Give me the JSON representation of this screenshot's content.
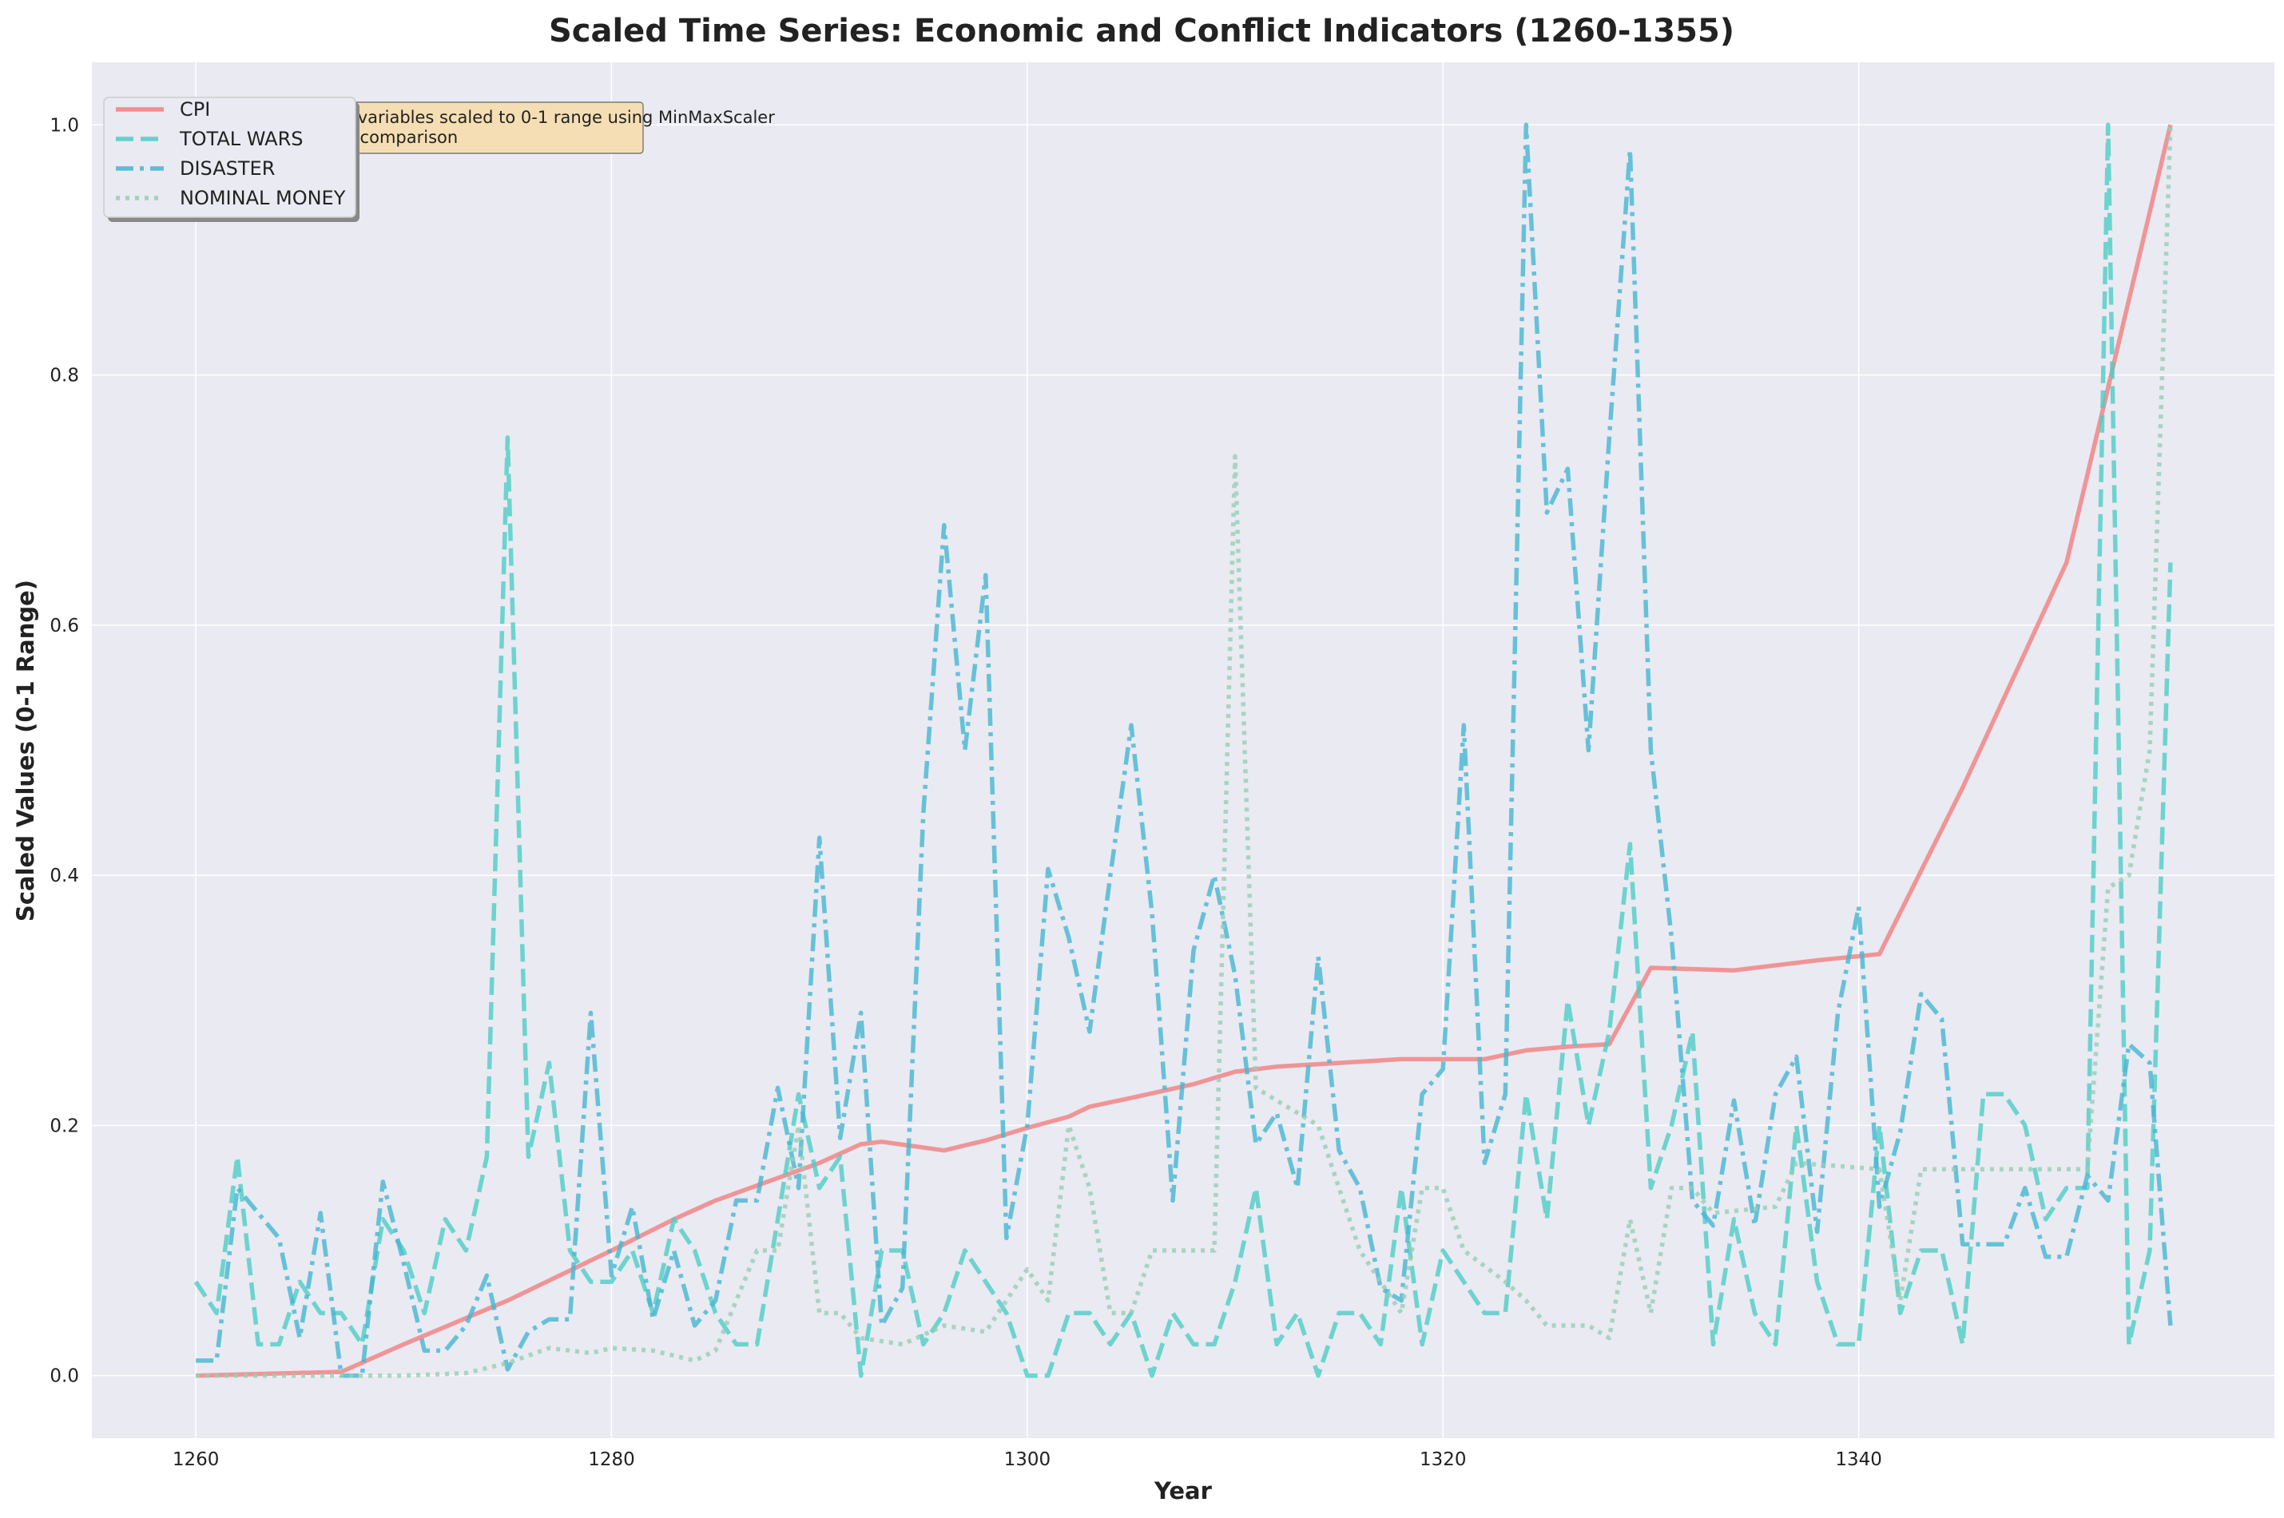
{
  "chart_data": {
    "type": "line",
    "title": "Scaled Time Series: Economic and Conflict Indicators (1260-1355)",
    "xlabel": "Year",
    "ylabel": "Scaled Values (0-1 Range)",
    "xlim": [
      1255,
      1360
    ],
    "ylim": [
      -0.05,
      1.05
    ],
    "xticks": [
      1260,
      1280,
      1300,
      1320,
      1340
    ],
    "yticks": [
      0.0,
      0.2,
      0.4,
      0.6,
      0.8,
      1.0
    ],
    "grid": true,
    "legend_position": "top-left",
    "annotation": "All variables scaled to 0-1 range using MinMaxScaler for comparison",
    "series": [
      {
        "name": "CPI",
        "color": "#f08080",
        "style": "solid",
        "points": [
          [
            1260,
            0.0
          ],
          [
            1267,
            0.003
          ],
          [
            1270,
            0.025
          ],
          [
            1275,
            0.06
          ],
          [
            1280,
            0.1
          ],
          [
            1283,
            0.125
          ],
          [
            1285,
            0.14
          ],
          [
            1290,
            0.17
          ],
          [
            1292,
            0.185
          ],
          [
            1293,
            0.187
          ],
          [
            1296,
            0.18
          ],
          [
            1298,
            0.188
          ],
          [
            1300,
            0.198
          ],
          [
            1302,
            0.207
          ],
          [
            1303,
            0.215
          ],
          [
            1305,
            0.222
          ],
          [
            1308,
            0.233
          ],
          [
            1310,
            0.243
          ],
          [
            1312,
            0.247
          ],
          [
            1315,
            0.25
          ],
          [
            1318,
            0.253
          ],
          [
            1320,
            0.253
          ],
          [
            1322,
            0.253
          ],
          [
            1324,
            0.26
          ],
          [
            1326,
            0.263
          ],
          [
            1328,
            0.265
          ],
          [
            1330,
            0.326
          ],
          [
            1334,
            0.324
          ],
          [
            1338,
            0.332
          ],
          [
            1341,
            0.337
          ],
          [
            1345,
            0.47
          ],
          [
            1350,
            0.65
          ],
          [
            1355,
            1.0
          ]
        ]
      },
      {
        "name": "TOTAL WARS",
        "color": "#4ecdc4",
        "style": "dashed",
        "points": [
          [
            1260,
            0.075
          ],
          [
            1261,
            0.05
          ],
          [
            1262,
            0.175
          ],
          [
            1263,
            0.025
          ],
          [
            1264,
            0.025
          ],
          [
            1265,
            0.075
          ],
          [
            1266,
            0.05
          ],
          [
            1267,
            0.05
          ],
          [
            1268,
            0.025
          ],
          [
            1269,
            0.125
          ],
          [
            1270,
            0.1
          ],
          [
            1271,
            0.05
          ],
          [
            1272,
            0.125
          ],
          [
            1273,
            0.1
          ],
          [
            1274,
            0.175
          ],
          [
            1275,
            0.75
          ],
          [
            1276,
            0.175
          ],
          [
            1277,
            0.25
          ],
          [
            1278,
            0.1
          ],
          [
            1279,
            0.075
          ],
          [
            1280,
            0.075
          ],
          [
            1281,
            0.1
          ],
          [
            1282,
            0.05
          ],
          [
            1283,
            0.125
          ],
          [
            1284,
            0.1
          ],
          [
            1285,
            0.05
          ],
          [
            1286,
            0.025
          ],
          [
            1287,
            0.025
          ],
          [
            1288,
            0.125
          ],
          [
            1289,
            0.225
          ],
          [
            1290,
            0.15
          ],
          [
            1291,
            0.175
          ],
          [
            1292,
            0.0
          ],
          [
            1293,
            0.1
          ],
          [
            1294,
            0.1
          ],
          [
            1295,
            0.025
          ],
          [
            1296,
            0.05
          ],
          [
            1297,
            0.1
          ],
          [
            1298,
            0.075
          ],
          [
            1299,
            0.05
          ],
          [
            1300,
            0.0
          ],
          [
            1301,
            0.0
          ],
          [
            1302,
            0.05
          ],
          [
            1303,
            0.05
          ],
          [
            1304,
            0.025
          ],
          [
            1305,
            0.05
          ],
          [
            1306,
            0.0
          ],
          [
            1307,
            0.05
          ],
          [
            1308,
            0.025
          ],
          [
            1309,
            0.025
          ],
          [
            1310,
            0.075
          ],
          [
            1311,
            0.15
          ],
          [
            1312,
            0.025
          ],
          [
            1313,
            0.05
          ],
          [
            1314,
            0.0
          ],
          [
            1315,
            0.05
          ],
          [
            1316,
            0.05
          ],
          [
            1317,
            0.025
          ],
          [
            1318,
            0.15
          ],
          [
            1319,
            0.025
          ],
          [
            1320,
            0.1
          ],
          [
            1321,
            0.075
          ],
          [
            1322,
            0.05
          ],
          [
            1323,
            0.05
          ],
          [
            1324,
            0.225
          ],
          [
            1325,
            0.125
          ],
          [
            1326,
            0.3
          ],
          [
            1327,
            0.2
          ],
          [
            1328,
            0.275
          ],
          [
            1329,
            0.425
          ],
          [
            1330,
            0.15
          ],
          [
            1331,
            0.2
          ],
          [
            1332,
            0.275
          ],
          [
            1333,
            0.025
          ],
          [
            1334,
            0.125
          ],
          [
            1335,
            0.05
          ],
          [
            1336,
            0.025
          ],
          [
            1337,
            0.2
          ],
          [
            1338,
            0.075
          ],
          [
            1339,
            0.025
          ],
          [
            1340,
            0.025
          ],
          [
            1341,
            0.2
          ],
          [
            1342,
            0.05
          ],
          [
            1343,
            0.1
          ],
          [
            1344,
            0.1
          ],
          [
            1345,
            0.025
          ],
          [
            1346,
            0.225
          ],
          [
            1347,
            0.225
          ],
          [
            1348,
            0.2
          ],
          [
            1349,
            0.125
          ],
          [
            1350,
            0.15
          ],
          [
            1351,
            0.15
          ],
          [
            1352,
            1.0
          ],
          [
            1353,
            0.025
          ],
          [
            1354,
            0.1
          ],
          [
            1355,
            0.65
          ]
        ]
      },
      {
        "name": "DISASTER",
        "color": "#45b7d1",
        "style": "dashdot",
        "points": [
          [
            1260,
            0.012
          ],
          [
            1261,
            0.012
          ],
          [
            1262,
            0.15
          ],
          [
            1263,
            0.13
          ],
          [
            1264,
            0.11
          ],
          [
            1265,
            0.03
          ],
          [
            1266,
            0.13
          ],
          [
            1267,
            0.0
          ],
          [
            1268,
            0.0
          ],
          [
            1269,
            0.155
          ],
          [
            1270,
            0.09
          ],
          [
            1271,
            0.02
          ],
          [
            1272,
            0.02
          ],
          [
            1273,
            0.04
          ],
          [
            1274,
            0.08
          ],
          [
            1275,
            0.005
          ],
          [
            1276,
            0.035
          ],
          [
            1277,
            0.045
          ],
          [
            1278,
            0.045
          ],
          [
            1279,
            0.29
          ],
          [
            1280,
            0.08
          ],
          [
            1281,
            0.135
          ],
          [
            1282,
            0.045
          ],
          [
            1283,
            0.1
          ],
          [
            1284,
            0.04
          ],
          [
            1285,
            0.06
          ],
          [
            1286,
            0.14
          ],
          [
            1287,
            0.14
          ],
          [
            1288,
            0.23
          ],
          [
            1289,
            0.15
          ],
          [
            1290,
            0.43
          ],
          [
            1291,
            0.19
          ],
          [
            1292,
            0.29
          ],
          [
            1293,
            0.04
          ],
          [
            1294,
            0.07
          ],
          [
            1295,
            0.45
          ],
          [
            1296,
            0.68
          ],
          [
            1297,
            0.5
          ],
          [
            1298,
            0.64
          ],
          [
            1299,
            0.11
          ],
          [
            1300,
            0.2
          ],
          [
            1301,
            0.405
          ],
          [
            1302,
            0.35
          ],
          [
            1303,
            0.275
          ],
          [
            1304,
            0.4
          ],
          [
            1305,
            0.52
          ],
          [
            1306,
            0.37
          ],
          [
            1307,
            0.14
          ],
          [
            1308,
            0.34
          ],
          [
            1309,
            0.4
          ],
          [
            1310,
            0.32
          ],
          [
            1311,
            0.185
          ],
          [
            1312,
            0.21
          ],
          [
            1313,
            0.15
          ],
          [
            1314,
            0.335
          ],
          [
            1315,
            0.18
          ],
          [
            1316,
            0.15
          ],
          [
            1317,
            0.07
          ],
          [
            1318,
            0.06
          ],
          [
            1319,
            0.225
          ],
          [
            1320,
            0.245
          ],
          [
            1321,
            0.52
          ],
          [
            1322,
            0.17
          ],
          [
            1323,
            0.225
          ],
          [
            1324,
            1.0
          ],
          [
            1325,
            0.69
          ],
          [
            1326,
            0.725
          ],
          [
            1327,
            0.5
          ],
          [
            1328,
            0.75
          ],
          [
            1329,
            0.98
          ],
          [
            1330,
            0.5
          ],
          [
            1331,
            0.35
          ],
          [
            1332,
            0.14
          ],
          [
            1333,
            0.12
          ],
          [
            1334,
            0.22
          ],
          [
            1335,
            0.12
          ],
          [
            1336,
            0.225
          ],
          [
            1337,
            0.255
          ],
          [
            1338,
            0.115
          ],
          [
            1339,
            0.29
          ],
          [
            1340,
            0.375
          ],
          [
            1341,
            0.135
          ],
          [
            1342,
            0.195
          ],
          [
            1343,
            0.305
          ],
          [
            1344,
            0.285
          ],
          [
            1345,
            0.105
          ],
          [
            1346,
            0.105
          ],
          [
            1347,
            0.105
          ],
          [
            1348,
            0.15
          ],
          [
            1349,
            0.095
          ],
          [
            1350,
            0.095
          ],
          [
            1351,
            0.16
          ],
          [
            1352,
            0.14
          ],
          [
            1353,
            0.265
          ],
          [
            1354,
            0.25
          ],
          [
            1355,
            0.04
          ]
        ]
      },
      {
        "name": "NOMINAL MONEY",
        "color": "#96ceb4",
        "style": "dotted",
        "points": [
          [
            1260,
            0.0
          ],
          [
            1267,
            0.0
          ],
          [
            1270,
            0.0
          ],
          [
            1273,
            0.002
          ],
          [
            1275,
            0.01
          ],
          [
            1277,
            0.022
          ],
          [
            1279,
            0.018
          ],
          [
            1280,
            0.022
          ],
          [
            1282,
            0.02
          ],
          [
            1284,
            0.012
          ],
          [
            1285,
            0.02
          ],
          [
            1287,
            0.1
          ],
          [
            1288,
            0.1
          ],
          [
            1289,
            0.2
          ],
          [
            1290,
            0.05
          ],
          [
            1291,
            0.05
          ],
          [
            1292,
            0.03
          ],
          [
            1294,
            0.025
          ],
          [
            1296,
            0.04
          ],
          [
            1298,
            0.035
          ],
          [
            1300,
            0.085
          ],
          [
            1301,
            0.06
          ],
          [
            1302,
            0.2
          ],
          [
            1303,
            0.15
          ],
          [
            1304,
            0.05
          ],
          [
            1305,
            0.05
          ],
          [
            1306,
            0.1
          ],
          [
            1307,
            0.1
          ],
          [
            1309,
            0.1
          ],
          [
            1310,
            0.735
          ],
          [
            1311,
            0.23
          ],
          [
            1312,
            0.22
          ],
          [
            1313,
            0.21
          ],
          [
            1314,
            0.2
          ],
          [
            1315,
            0.15
          ],
          [
            1316,
            0.1
          ],
          [
            1317,
            0.075
          ],
          [
            1318,
            0.05
          ],
          [
            1319,
            0.15
          ],
          [
            1320,
            0.15
          ],
          [
            1321,
            0.1
          ],
          [
            1323,
            0.075
          ],
          [
            1324,
            0.06
          ],
          [
            1325,
            0.04
          ],
          [
            1327,
            0.04
          ],
          [
            1328,
            0.03
          ],
          [
            1329,
            0.125
          ],
          [
            1330,
            0.05
          ],
          [
            1331,
            0.15
          ],
          [
            1332,
            0.15
          ],
          [
            1333,
            0.13
          ],
          [
            1336,
            0.135
          ],
          [
            1337,
            0.17
          ],
          [
            1341,
            0.165
          ],
          [
            1342,
            0.06
          ],
          [
            1343,
            0.165
          ],
          [
            1350,
            0.165
          ],
          [
            1351,
            0.165
          ],
          [
            1352,
            0.39
          ],
          [
            1353,
            0.4
          ],
          [
            1354,
            0.5
          ],
          [
            1355,
            1.0
          ]
        ]
      }
    ]
  }
}
